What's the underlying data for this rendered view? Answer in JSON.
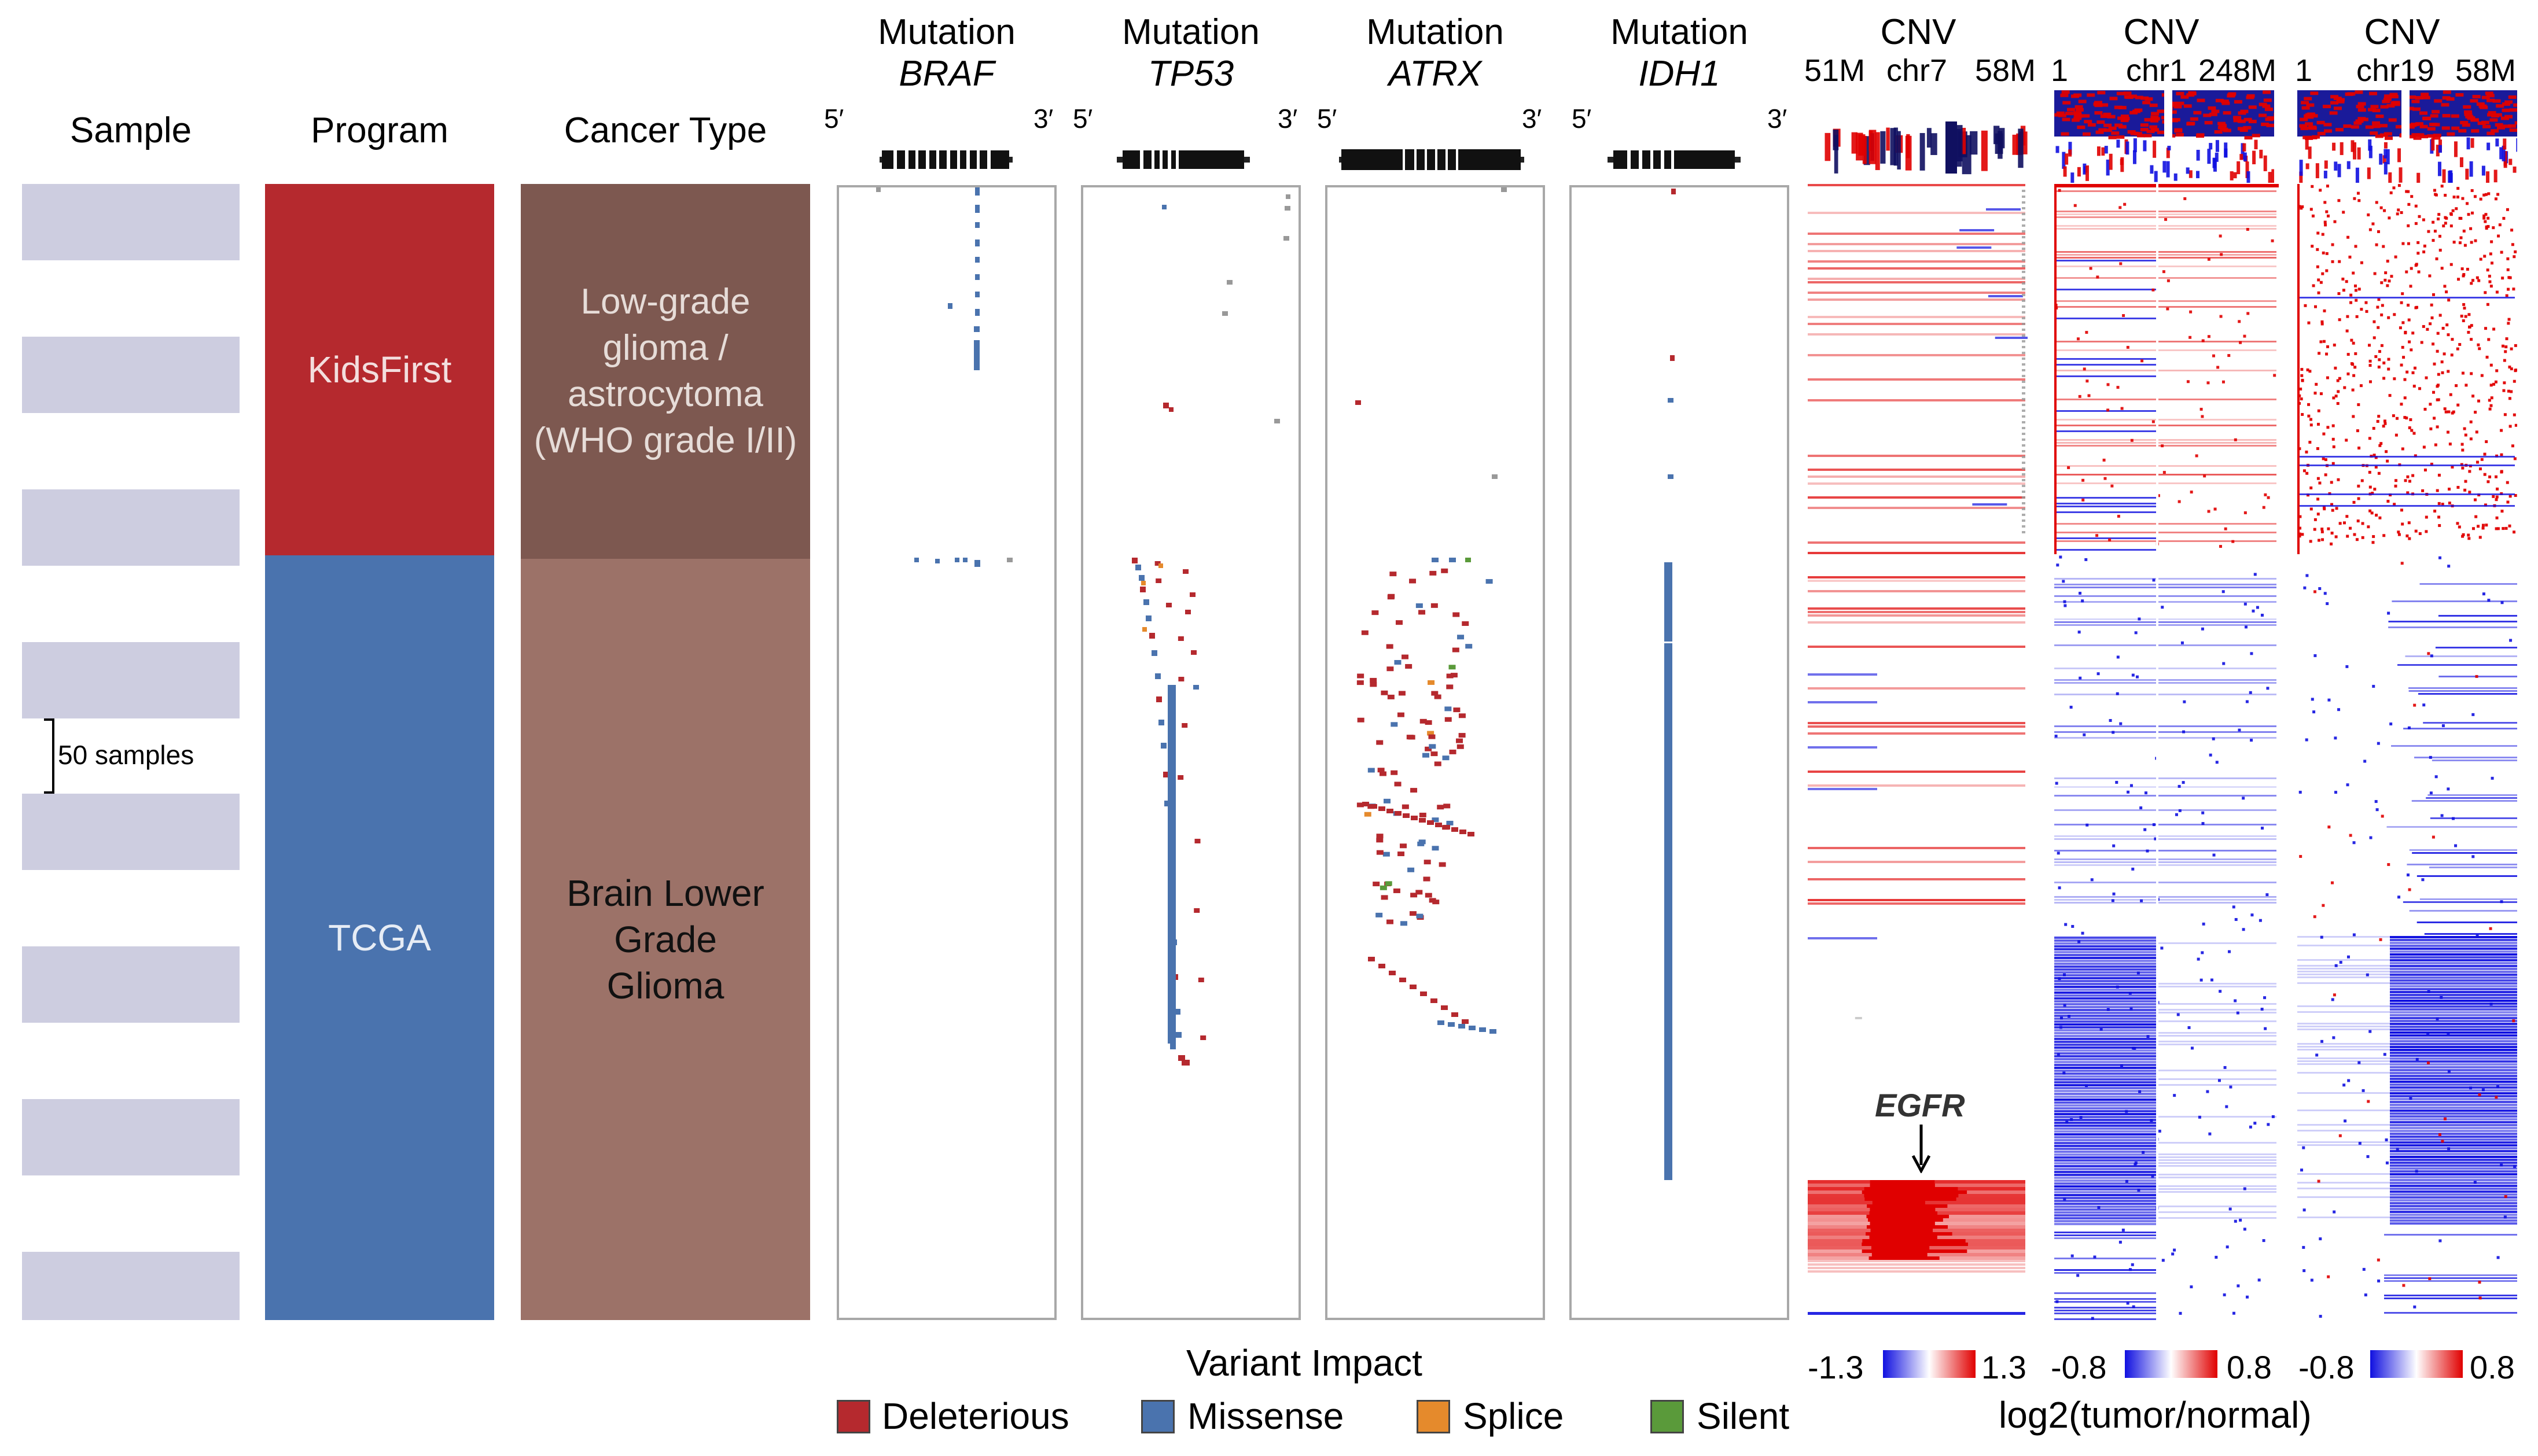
{
  "headers": {
    "sample": "Sample",
    "program": "Program",
    "cancer_type": "Cancer Type",
    "mutation_word": "Mutation",
    "cnv_word": "CNV"
  },
  "mutation_genes": [
    "BRAF",
    "TP53",
    "ATRX",
    "IDH1"
  ],
  "strand_labels": {
    "five": "5′",
    "three": "3′"
  },
  "cnv_panels": [
    {
      "left": "51M",
      "chrom": "chr7",
      "right": "58M",
      "min": "-1.3",
      "max": "1.3"
    },
    {
      "left": "1",
      "chrom": "chr1",
      "right": "248M",
      "min": "-0.8",
      "max": "0.8"
    },
    {
      "left": "1",
      "chrom": "chr19",
      "right": "58M",
      "min": "-0.8",
      "max": "0.8"
    }
  ],
  "scale_label": "50 samples",
  "programs": [
    {
      "name": "KidsFirst",
      "color": "#b5292e"
    },
    {
      "name": "TCGA",
      "color": "#4a73ae"
    }
  ],
  "cancer_types": [
    {
      "name": "Low-grade glioma / astrocytoma (WHO grade I/II)",
      "color": "#7d5850",
      "text_color": "#e6dcd8"
    },
    {
      "name": "Brain Lower Grade Glioma",
      "color": "#9c7268",
      "text_color": "#111111"
    }
  ],
  "egfr_annotation": "EGFR",
  "legend": {
    "title": "Variant Impact",
    "items": [
      {
        "label": "Deleterious",
        "color": "#b5292e"
      },
      {
        "label": "Missense",
        "color": "#4a73ae"
      },
      {
        "label": "Splice",
        "color": "#e58a2c"
      },
      {
        "label": "Silent",
        "color": "#5a9a3a"
      }
    ]
  },
  "colorbar_title": "log2(tumor/normal)",
  "colors": {
    "cnv_gain": "#e00000",
    "cnv_loss": "#1010e0",
    "sample_block": "#cdcde0",
    "panel_border": "#a8a8a8",
    "silent_gray": "#999999"
  }
}
